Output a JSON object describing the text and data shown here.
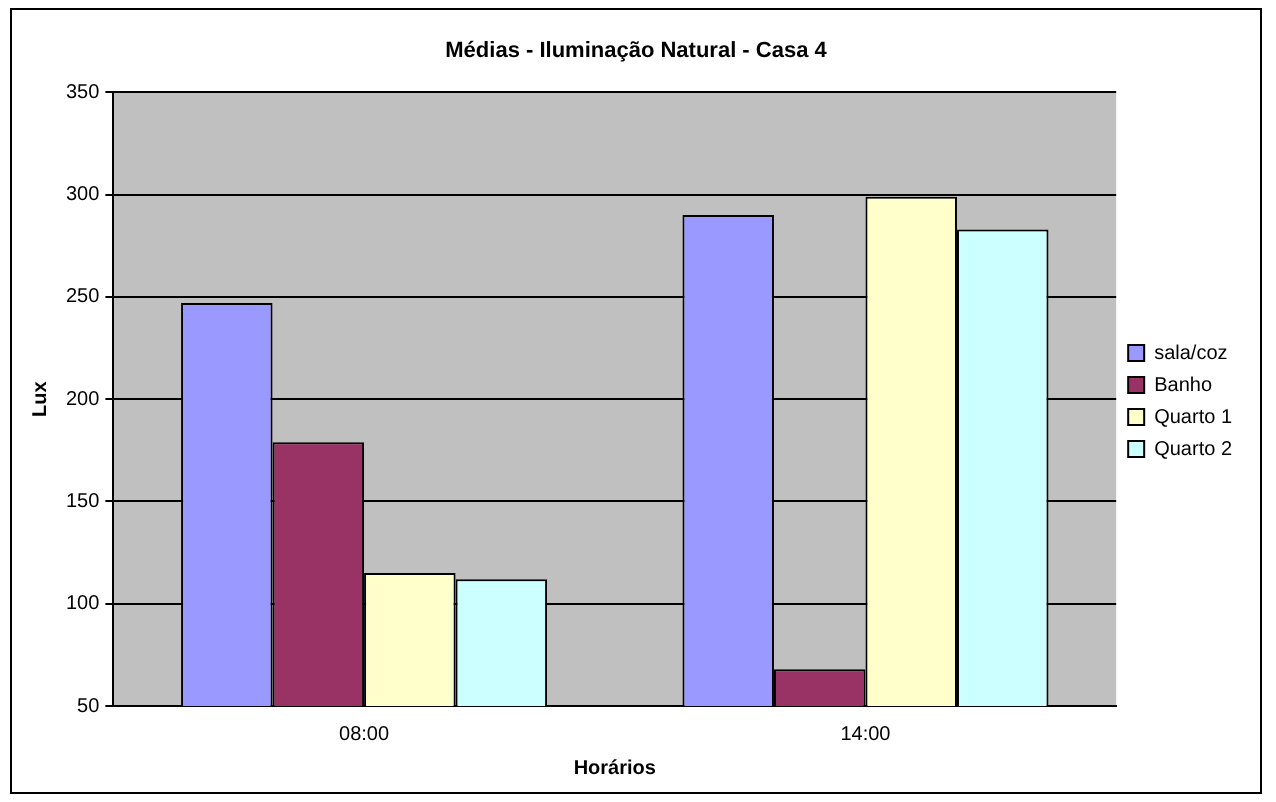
{
  "chart_data": {
    "type": "bar",
    "title": "Médias - Iluminação Natural - Casa 4",
    "xlabel": "Horários",
    "ylabel": "Lux",
    "categories": [
      "08:00",
      "14:00"
    ],
    "series": [
      {
        "name": "sala/coz",
        "color": "#9999ff",
        "values": [
          247,
          290
        ]
      },
      {
        "name": "Banho",
        "color": "#993366",
        "values": [
          179,
          68
        ]
      },
      {
        "name": "Quarto 1",
        "color": "#ffffcc",
        "values": [
          115,
          299
        ]
      },
      {
        "name": "Quarto 2",
        "color": "#ccffff",
        "values": [
          112,
          283
        ]
      }
    ],
    "ylim": [
      50,
      350
    ],
    "yticks": [
      50,
      100,
      150,
      200,
      250,
      300,
      350
    ],
    "grid": "y",
    "legend": "right"
  }
}
